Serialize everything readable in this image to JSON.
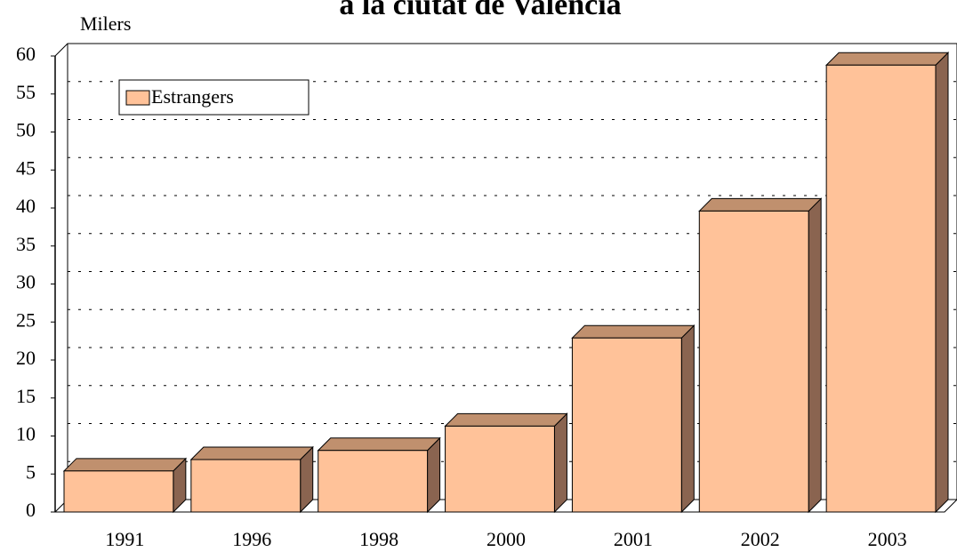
{
  "chart_data": {
    "type": "bar",
    "title": "a la ciutat de Valencia",
    "y_label": "Milers",
    "categories": [
      "1991",
      "1996",
      "1998",
      "2000",
      "2001",
      "2002",
      "2003"
    ],
    "series": [
      {
        "name": "Estrangers",
        "color": "#ffc299",
        "values": [
          5.4,
          6.9,
          8.1,
          11.3,
          22.9,
          39.6,
          58.8
        ]
      }
    ],
    "ylim": [
      0,
      60
    ],
    "yticks": [
      0,
      5,
      10,
      15,
      20,
      25,
      30,
      35,
      40,
      45,
      50,
      55,
      60
    ],
    "grid": true,
    "legend": "top-left"
  }
}
